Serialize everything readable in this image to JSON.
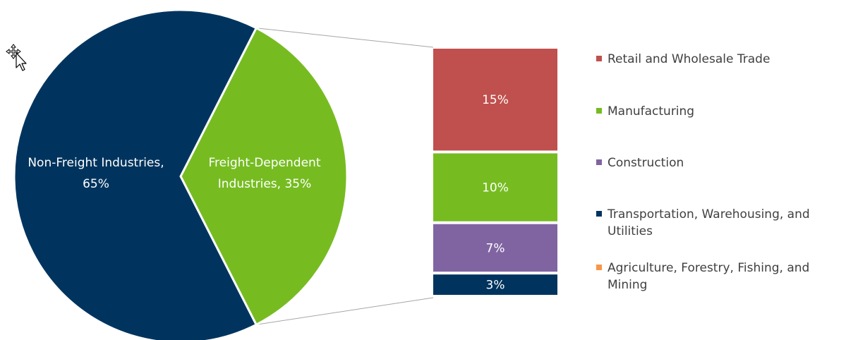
{
  "chart_data": {
    "type": "pie",
    "title": "",
    "pie": {
      "slices": [
        {
          "label": "Non-Freight Industries,",
          "label2": "65%",
          "value": 65,
          "color": "#00345E"
        },
        {
          "label": "Freight-Dependent",
          "label2": "Industries, 35%",
          "value": 35,
          "color": "#76BC21"
        }
      ]
    },
    "breakdown": {
      "categories": [
        "Retail and Wholesale Trade",
        "Manufacturing",
        "Construction",
        "Transportation, Warehousing, and Utilities",
        "Agriculture, Forestry, Fishing, and Mining"
      ],
      "values": [
        15,
        10,
        7,
        3,
        0
      ],
      "labels": [
        "15%",
        "10%",
        "7%",
        "3%",
        ""
      ],
      "colors": [
        "#C0504D",
        "#76BC21",
        "#8064A2",
        "#00345E",
        "#F79646"
      ]
    },
    "legend": {
      "placement": "right",
      "items": [
        {
          "label": "Retail and Wholesale Trade",
          "color": "#C0504D"
        },
        {
          "label": "Manufacturing",
          "color": "#76BC21"
        },
        {
          "label": "Construction",
          "color": "#8064A2"
        },
        {
          "label": "Transportation, Warehousing, and Utilities",
          "color": "#00345E"
        },
        {
          "label": "Agriculture, Forestry, Fishing, and Mining",
          "color": "#F79646"
        }
      ]
    }
  },
  "icons": {
    "cursor": "move-cursor-icon"
  }
}
